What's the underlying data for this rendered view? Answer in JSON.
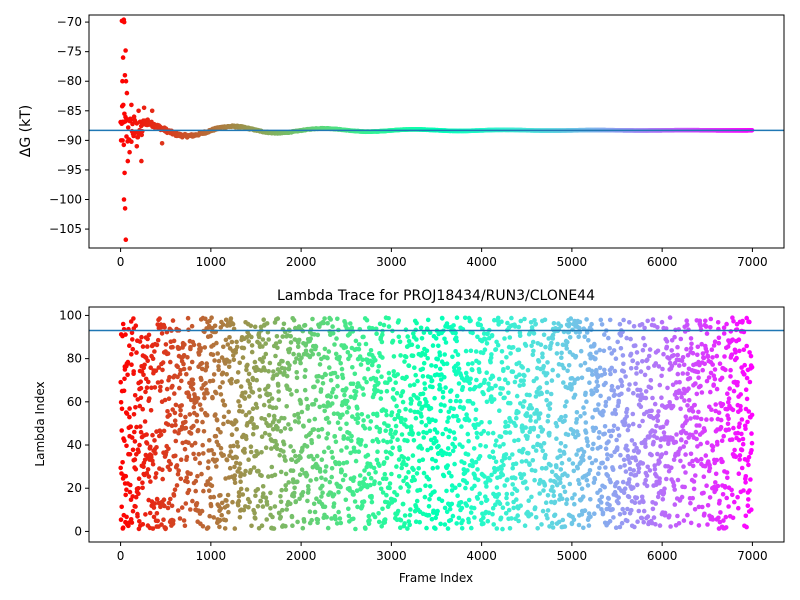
{
  "chart_data": [
    {
      "type": "scatter",
      "title": "",
      "xlabel": "",
      "ylabel": "ΔG (kT)",
      "xlim": [
        -350,
        7350
      ],
      "ylim": [
        -108.2,
        -68.8
      ],
      "xticks": [
        0,
        1000,
        2000,
        3000,
        4000,
        5000,
        6000,
        7000
      ],
      "yticks": [
        -105,
        -100,
        -95,
        -90,
        -85,
        -80,
        -75,
        -70
      ],
      "grid": false,
      "reference_line": {
        "y": -88.3,
        "color": "#1f77b4"
      },
      "colormap": "rainbow",
      "series": [
        {
          "points_note": "",
          "n_frames": 7000,
          "converged_value": -88.3,
          "early_outliers": [
            [
              15,
              -69.8
            ],
            [
              35,
              -69.6
            ],
            [
              40,
              -70.0
            ],
            [
              28,
              -76.0
            ],
            [
              55,
              -74.8
            ],
            [
              20,
              -80.0
            ],
            [
              48,
              -79.0
            ],
            [
              60,
              -80.0
            ],
            [
              30,
              -84.0
            ],
            [
              70,
              -82.0
            ],
            [
              22,
              -90.0
            ],
            [
              44,
              -95.5
            ],
            [
              38,
              -100.0
            ],
            [
              50,
              -101.5
            ],
            [
              58,
              -106.8
            ],
            [
              80,
              -93.5
            ],
            [
              100,
              -92.0
            ],
            [
              120,
              -84.0
            ],
            [
              150,
              -86.0
            ],
            [
              180,
              -91.0
            ],
            [
              200,
              -85.0
            ],
            [
              230,
              -93.5
            ],
            [
              260,
              -84.5
            ],
            [
              300,
              -86.5
            ],
            [
              350,
              -85.0
            ],
            [
              420,
              -88.0
            ],
            [
              460,
              -90.5
            ],
            [
              500,
              -88.5
            ]
          ]
        }
      ]
    },
    {
      "type": "scatter",
      "title": "Lambda Trace for PROJ18434/RUN3/CLONE44",
      "xlabel": "Frame Index",
      "ylabel": "Lambda Index",
      "xlim": [
        -350,
        7350
      ],
      "ylim": [
        -4.9,
        103.9
      ],
      "xticks": [
        0,
        1000,
        2000,
        3000,
        4000,
        5000,
        6000,
        7000
      ],
      "yticks": [
        0,
        20,
        40,
        60,
        80,
        100
      ],
      "grid": false,
      "reference_line": {
        "y": 93,
        "color": "#1f77b4"
      },
      "colormap": "rainbow",
      "series": [
        {
          "n_frames": 7000,
          "lambda_range": [
            1,
            99
          ]
        }
      ]
    }
  ]
}
